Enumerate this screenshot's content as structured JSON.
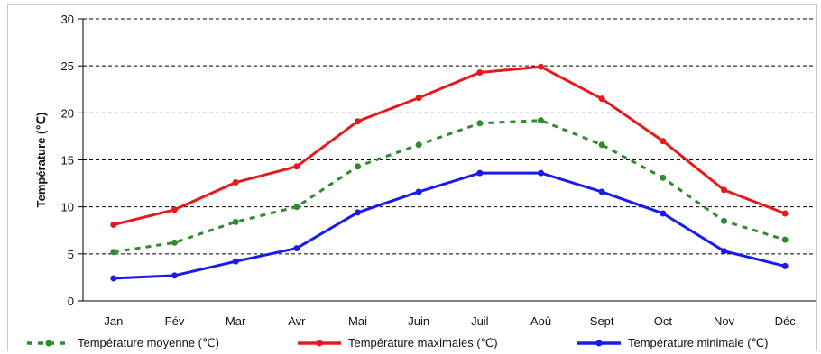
{
  "chart_data": {
    "type": "line",
    "categories": [
      "Jan",
      "Fév",
      "Mar",
      "Avr",
      "Mai",
      "Juin",
      "Juil",
      "Aoû",
      "Sept",
      "Oct",
      "Nov",
      "Déc"
    ],
    "ylabel": "Température (℃)",
    "xlabel": "",
    "ylim": [
      0,
      30
    ],
    "yticks": [
      0,
      5,
      10,
      15,
      20,
      25,
      30
    ],
    "grid": "horizontal dashed",
    "legend_placement": "bottom",
    "series": [
      {
        "name": "Température moyenne (℃)",
        "color": "#2e8b2e",
        "style": "dotted",
        "values": [
          5.2,
          6.2,
          8.4,
          10.0,
          14.3,
          16.6,
          18.9,
          19.2,
          16.6,
          13.1,
          8.5,
          6.5
        ]
      },
      {
        "name": "Température maximales (℃)",
        "color": "#e31b1b",
        "style": "solid",
        "values": [
          8.1,
          9.7,
          12.6,
          14.3,
          19.1,
          21.6,
          24.3,
          24.9,
          21.5,
          17.0,
          11.8,
          9.3
        ]
      },
      {
        "name": "Température minimale (℃)",
        "color": "#1a1aee",
        "style": "solid",
        "values": [
          2.4,
          2.7,
          4.2,
          5.6,
          9.4,
          11.6,
          13.6,
          13.6,
          11.6,
          9.3,
          5.3,
          3.7
        ]
      }
    ]
  }
}
